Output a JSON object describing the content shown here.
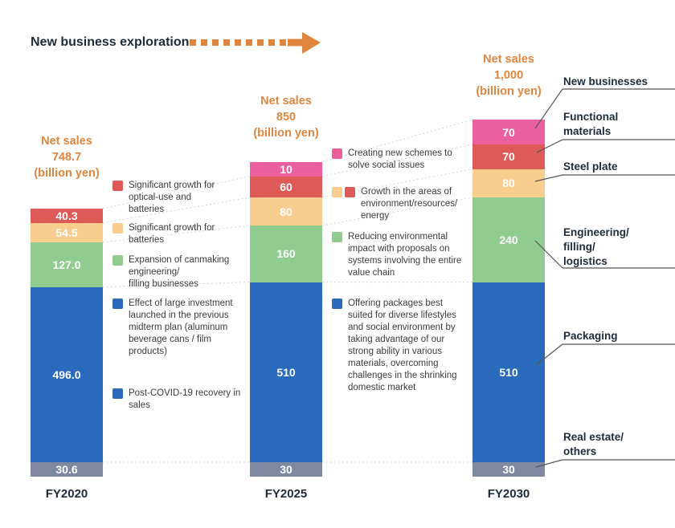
{
  "title": {
    "text": "New business exploration"
  },
  "colors": {
    "orange": "#e0853e",
    "pink": "#ea5f9e",
    "red": "#dd5a57",
    "yellow": "#f8cd8d",
    "green": "#90cc90",
    "blue": "#2a6abd",
    "gray": "#7e88a0",
    "dark_text": "#1e2b3a",
    "note_text": "#3b3b3b",
    "dash_line": "#cfd3da",
    "leader_line": "#555555"
  },
  "chart_data": {
    "type": "bar",
    "stacked": true,
    "unit": "billion yen",
    "categories": [
      "FY2020",
      "FY2025",
      "FY2030"
    ],
    "totals": [
      748.7,
      850,
      1000
    ],
    "total_labels": [
      "748.7",
      "850",
      "1,000"
    ],
    "series": [
      {
        "key": "gray",
        "name": "Real estate/others",
        "color": "#7e88a0",
        "values": [
          30.6,
          30,
          30
        ],
        "labels": [
          "30.6",
          "30",
          "30"
        ]
      },
      {
        "key": "blue",
        "name": "Packaging",
        "color": "#2a6abd",
        "values": [
          496.0,
          510,
          510
        ],
        "labels": [
          "496.0",
          "510",
          "510"
        ]
      },
      {
        "key": "green",
        "name": "Engineering/filling/logistics",
        "color": "#90cc90",
        "values": [
          127.0,
          160,
          240
        ],
        "labels": [
          "127.0",
          "160",
          "240"
        ]
      },
      {
        "key": "yellow",
        "name": "Steel plate",
        "color": "#f8cd8d",
        "values": [
          54.5,
          80,
          80
        ],
        "labels": [
          "54.5",
          "80",
          "80"
        ]
      },
      {
        "key": "red",
        "name": "Functional materials",
        "color": "#dd5a57",
        "values": [
          40.3,
          60,
          70
        ],
        "labels": [
          "40.3",
          "60",
          "70"
        ]
      },
      {
        "key": "pink",
        "name": "New businesses",
        "color": "#ea5f9e",
        "values": [
          0,
          10,
          70
        ],
        "labels": [
          "",
          "10",
          "70"
        ]
      }
    ]
  },
  "net_sales": [
    {
      "line1": "Net sales",
      "value": "748.7",
      "line3": "(billion yen)"
    },
    {
      "line1": "Net sales",
      "value": "850",
      "line3": "(billion yen)"
    },
    {
      "line1": "Net sales",
      "value": "1,000",
      "line3": "(billion yen)"
    }
  ],
  "axis_labels": [
    "FY2020",
    "FY2025",
    "FY2030"
  ],
  "notes_fy2020": [
    {
      "swatches": [
        "red"
      ],
      "text": "Significant growth for\noptical-use and\nbatteries"
    },
    {
      "swatches": [
        "yellow"
      ],
      "text": "Significant growth for\nbatteries"
    },
    {
      "swatches": [
        "green"
      ],
      "text": "Expansion of canmaking\nengineering/\nfilling businesses"
    },
    {
      "swatches": [
        "blue"
      ],
      "text": "Effect of large investment\nlaunched in the previous\nmidterm plan (aluminum\nbeverage cans / film\nproducts)"
    },
    {
      "swatches": [
        "blue"
      ],
      "text": "Post-COVID-19 recovery in\nsales"
    }
  ],
  "notes_fy2025": [
    {
      "swatches": [
        "pink"
      ],
      "text": "Creating new schemes to\nsolve social issues"
    },
    {
      "swatches": [
        "yellow",
        "red"
      ],
      "text": "Growth in the areas of\nenvironment/resources/\nenergy"
    },
    {
      "swatches": [
        "green"
      ],
      "text": "Reducing environmental\nimpact with proposals on\nsystems involving the entire\nvalue chain"
    },
    {
      "swatches": [
        "blue"
      ],
      "text": "Offering packages best\nsuited for diverse lifestyles\nand social environment by\ntaking advantage of our\nstrong ability in various\nmaterials, overcoming\nchallenges in the shrinking\ndomestic market"
    }
  ],
  "segment_labels": [
    {
      "text": "New businesses"
    },
    {
      "text": "Functional\nmaterials"
    },
    {
      "text": "Steel plate"
    },
    {
      "text": "Engineering/\nfilling/\nlogistics"
    },
    {
      "text": "Packaging"
    },
    {
      "text": "Real estate/\nothers"
    }
  ]
}
